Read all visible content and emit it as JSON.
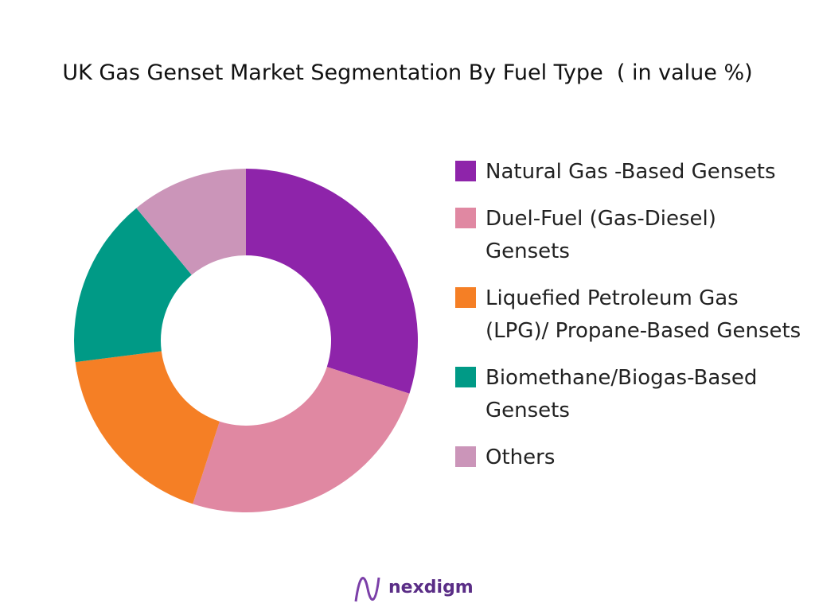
{
  "chart_data": {
    "type": "pie",
    "title": "UK Gas Genset Market Segmentation By Fuel Type  ( in value %)",
    "categories": [
      "Natural Gas -Based Gensets",
      "Duel-Fuel (Gas-Diesel) Gensets",
      "Liquefied Petroleum Gas (LPG)/ Propane-Based Gensets",
      "Biomethane/Biogas-Based Gensets",
      "Others"
    ],
    "values": [
      30,
      25,
      18,
      16,
      11
    ],
    "colors": [
      "#8e24aa",
      "#e088a2",
      "#f57f25",
      "#009a86",
      "#cb95b9"
    ],
    "donut": true,
    "legend": "right"
  },
  "logo": "nexdigm"
}
